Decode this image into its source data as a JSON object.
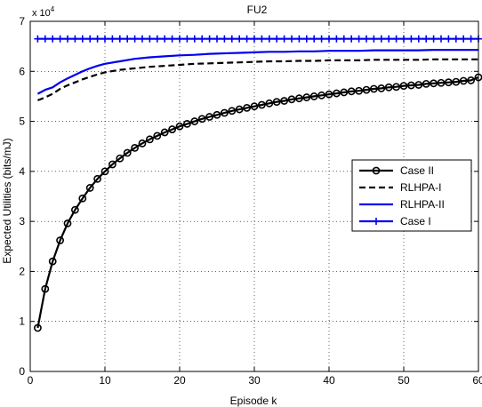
{
  "chart_data": {
    "type": "line",
    "title": "FU2",
    "xlabel": "Episode k",
    "ylabel": "Expected Utilities (bits/mJ)",
    "y_multiplier": "x 10",
    "y_multiplier_exp": "4",
    "xlim": [
      0,
      60
    ],
    "ylim": [
      0,
      7
    ],
    "xticks": [
      0,
      10,
      20,
      30,
      40,
      50,
      60
    ],
    "yticks": [
      0,
      1,
      2,
      3,
      4,
      5,
      6,
      7
    ],
    "grid": true,
    "legend_position": "right",
    "series": [
      {
        "name": "Case II",
        "color": "#000000",
        "style": "solid",
        "marker": "circle",
        "x": [
          1,
          2,
          3,
          4,
          5,
          6,
          7,
          8,
          9,
          10,
          11,
          12,
          13,
          14,
          15,
          16,
          17,
          18,
          19,
          20,
          21,
          22,
          23,
          24,
          25,
          26,
          27,
          28,
          29,
          30,
          31,
          32,
          33,
          34,
          35,
          36,
          37,
          38,
          39,
          40,
          41,
          42,
          43,
          44,
          45,
          46,
          47,
          48,
          49,
          50,
          51,
          52,
          53,
          54,
          55,
          56,
          57,
          58,
          59,
          60
        ],
        "values": [
          0.87,
          1.65,
          2.2,
          2.62,
          2.96,
          3.23,
          3.46,
          3.67,
          3.85,
          4.0,
          4.14,
          4.26,
          4.37,
          4.47,
          4.56,
          4.64,
          4.71,
          4.78,
          4.84,
          4.9,
          4.95,
          5.0,
          5.05,
          5.09,
          5.13,
          5.17,
          5.21,
          5.24,
          5.27,
          5.3,
          5.33,
          5.36,
          5.39,
          5.41,
          5.44,
          5.46,
          5.48,
          5.5,
          5.52,
          5.54,
          5.56,
          5.58,
          5.6,
          5.61,
          5.63,
          5.65,
          5.66,
          5.68,
          5.69,
          5.71,
          5.72,
          5.73,
          5.75,
          5.76,
          5.77,
          5.78,
          5.79,
          5.81,
          5.82,
          5.88
        ]
      },
      {
        "name": "RLHPA-I",
        "color": "#000000",
        "style": "dashed",
        "marker": "none",
        "x": [
          1,
          2,
          3,
          4,
          5,
          6,
          7,
          8,
          9,
          10,
          12,
          14,
          16,
          18,
          20,
          22,
          24,
          26,
          28,
          30,
          32,
          34,
          36,
          38,
          40,
          42,
          44,
          46,
          48,
          50,
          52,
          54,
          56,
          58,
          60
        ],
        "values": [
          5.42,
          5.48,
          5.55,
          5.65,
          5.72,
          5.78,
          5.84,
          5.89,
          5.94,
          5.98,
          6.03,
          6.06,
          6.09,
          6.11,
          6.13,
          6.15,
          6.16,
          6.17,
          6.18,
          6.19,
          6.2,
          6.2,
          6.21,
          6.21,
          6.22,
          6.22,
          6.22,
          6.23,
          6.23,
          6.23,
          6.23,
          6.24,
          6.24,
          6.24,
          6.24
        ]
      },
      {
        "name": "RLHPA-II",
        "color": "#0000ee",
        "style": "solid",
        "marker": "none",
        "x": [
          1,
          2,
          3,
          4,
          5,
          6,
          7,
          8,
          9,
          10,
          12,
          14,
          16,
          18,
          20,
          22,
          24,
          26,
          28,
          30,
          32,
          34,
          36,
          38,
          40,
          42,
          44,
          46,
          48,
          50,
          52,
          54,
          56,
          58,
          60
        ],
        "values": [
          5.55,
          5.63,
          5.68,
          5.78,
          5.86,
          5.93,
          6.0,
          6.06,
          6.11,
          6.15,
          6.2,
          6.25,
          6.28,
          6.3,
          6.32,
          6.33,
          6.35,
          6.36,
          6.37,
          6.38,
          6.39,
          6.39,
          6.4,
          6.4,
          6.41,
          6.41,
          6.41,
          6.42,
          6.42,
          6.42,
          6.42,
          6.43,
          6.43,
          6.43,
          6.43
        ]
      },
      {
        "name": "Case I",
        "color": "#0000ee",
        "style": "solid",
        "marker": "plus",
        "x": [
          1,
          2,
          3,
          4,
          5,
          6,
          7,
          8,
          9,
          10,
          11,
          12,
          13,
          14,
          15,
          16,
          17,
          18,
          19,
          20,
          21,
          22,
          23,
          24,
          25,
          26,
          27,
          28,
          29,
          30,
          31,
          32,
          33,
          34,
          35,
          36,
          37,
          38,
          39,
          40,
          41,
          42,
          43,
          44,
          45,
          46,
          47,
          48,
          49,
          50,
          51,
          52,
          53,
          54,
          55,
          56,
          57,
          58,
          59,
          60
        ],
        "values": [
          6.65,
          6.65,
          6.65,
          6.65,
          6.65,
          6.65,
          6.65,
          6.65,
          6.65,
          6.65,
          6.65,
          6.65,
          6.65,
          6.65,
          6.65,
          6.65,
          6.65,
          6.65,
          6.65,
          6.65,
          6.65,
          6.65,
          6.65,
          6.65,
          6.65,
          6.65,
          6.65,
          6.65,
          6.65,
          6.65,
          6.65,
          6.65,
          6.65,
          6.65,
          6.65,
          6.65,
          6.65,
          6.65,
          6.65,
          6.65,
          6.65,
          6.65,
          6.65,
          6.65,
          6.65,
          6.65,
          6.65,
          6.65,
          6.65,
          6.65,
          6.65,
          6.65,
          6.65,
          6.65,
          6.65,
          6.65,
          6.65,
          6.65,
          6.65,
          6.65
        ]
      }
    ]
  }
}
